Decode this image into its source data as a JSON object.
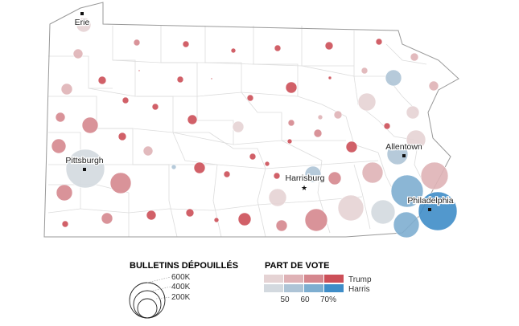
{
  "map": {
    "cities": [
      {
        "name": "Erie",
        "type": "square"
      },
      {
        "name": "Pittsburgh",
        "type": "square"
      },
      {
        "name": "Allentown",
        "type": "square"
      },
      {
        "name": "Harrisburg",
        "type": "star"
      },
      {
        "name": "Philadelphia",
        "type": "square"
      }
    ]
  },
  "legend": {
    "size": {
      "title": "BULLETINS DÉPOUILLÉS",
      "labels": [
        "600K",
        "400K",
        "200K"
      ]
    },
    "vote": {
      "title": "PART DE VOTE",
      "series": [
        {
          "name": "Trump",
          "colors": [
            "#e5d3d4",
            "#dfb2b6",
            "#d5878e",
            "#cc4f58"
          ]
        },
        {
          "name": "Harris",
          "colors": [
            "#d3d9df",
            "#aec4d6",
            "#7eaed0",
            "#3f8dc8"
          ]
        }
      ],
      "ticks": [
        "50",
        "60",
        "70%"
      ]
    }
  }
}
